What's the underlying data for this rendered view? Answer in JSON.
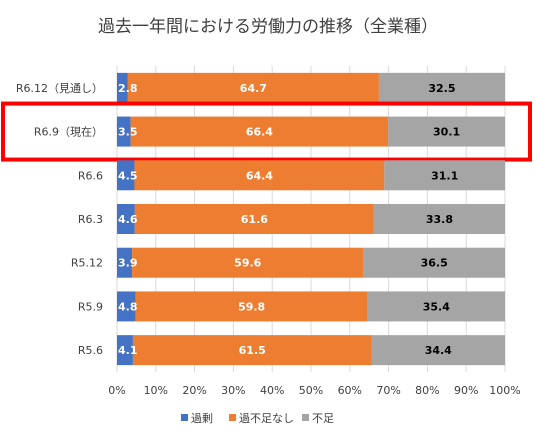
{
  "chart_data": {
    "type": "bar",
    "orientation": "horizontal",
    "stacked": true,
    "title": "過去一年間における労働力の推移（全業種）",
    "categories": [
      "R6.12（見通し）",
      "R6.9（現在）",
      "R6.6",
      "R6.3",
      "R5.12",
      "R5.9",
      "R5.6"
    ],
    "series": [
      {
        "name": "過剰",
        "color": "#4472C4",
        "values": [
          2.8,
          3.5,
          4.5,
          4.6,
          3.9,
          4.8,
          4.1
        ]
      },
      {
        "name": "過不足なし",
        "color": "#ED7D31",
        "values": [
          64.7,
          66.4,
          64.4,
          61.6,
          59.6,
          59.8,
          61.5
        ]
      },
      {
        "name": "不足",
        "color": "#A5A5A5",
        "values": [
          32.5,
          30.1,
          31.1,
          33.8,
          36.5,
          35.4,
          34.4
        ]
      }
    ],
    "value_label_colors": [
      "#ffffff",
      "#ffffff",
      "#000000"
    ],
    "xlim": [
      0,
      100
    ],
    "xticks": [
      "0%",
      "10%",
      "20%",
      "30%",
      "40%",
      "50%",
      "60%",
      "70%",
      "80%",
      "90%",
      "100%"
    ],
    "legend_position": "bottom",
    "highlighted_category": "R6.9（現在）",
    "highlight_color": "#FF0000",
    "grid": "vertical"
  }
}
